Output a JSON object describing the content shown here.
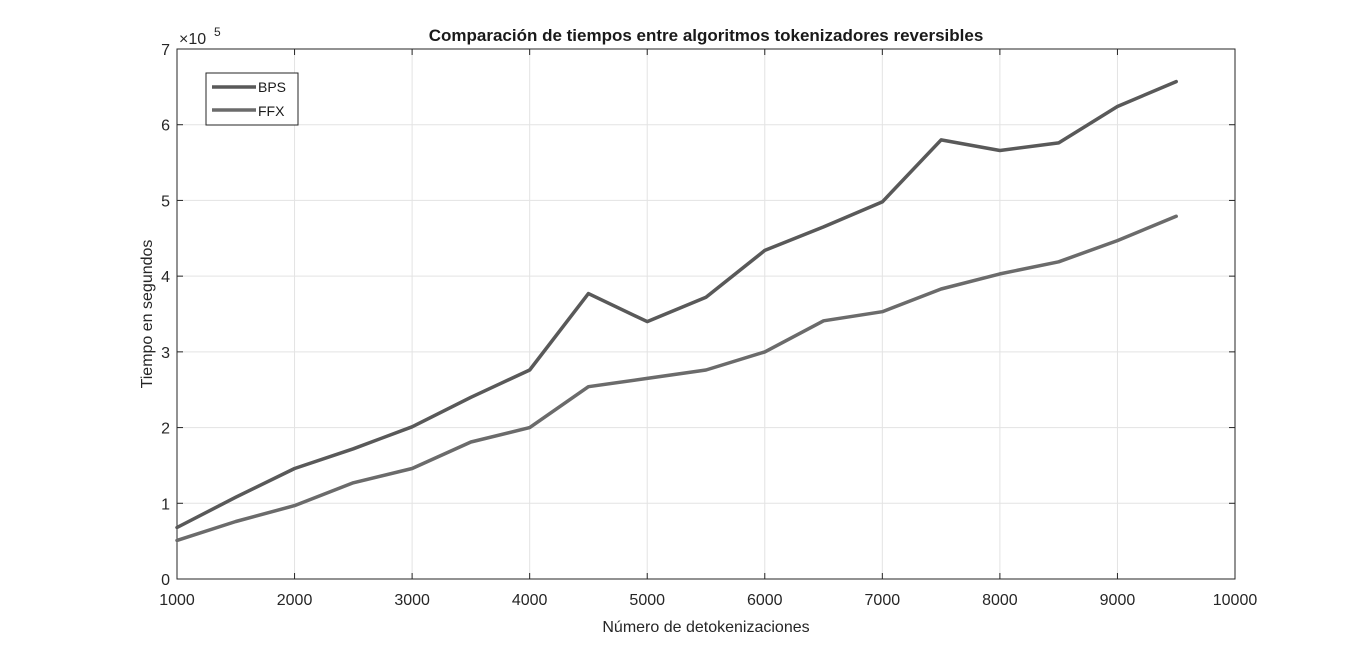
{
  "chart_data": {
    "type": "line",
    "title": "Comparación de tiempos entre algoritmos tokenizadores reversibles",
    "xlabel": "Número de detokenizaciones",
    "ylabel": "Tiempo en segundos",
    "y_exponent_label": "×10",
    "y_exponent_power": "5",
    "xlim": [
      1000,
      10000
    ],
    "ylim": [
      0,
      700000
    ],
    "xticks": [
      "1000",
      "2000",
      "3000",
      "4000",
      "5000",
      "6000",
      "7000",
      "8000",
      "9000",
      "10000"
    ],
    "yticks": [
      "0",
      "1",
      "2",
      "3",
      "4",
      "5",
      "6",
      "7"
    ],
    "grid": true,
    "legend_position": "top-left",
    "x": [
      1000,
      1500,
      2000,
      2500,
      3000,
      3500,
      4000,
      4500,
      5000,
      5500,
      6000,
      6500,
      7000,
      7500,
      8000,
      8500,
      9000,
      9500
    ],
    "series": [
      {
        "name": "BPS",
        "color": "#595959",
        "values": [
          68000,
          108000,
          146000,
          172000,
          201000,
          240000,
          276000,
          377000,
          340000,
          372000,
          434000,
          465000,
          498000,
          580000,
          566000,
          576000,
          624000,
          657000
        ]
      },
      {
        "name": "FFX",
        "color": "#6b6b6b",
        "values": [
          51000,
          76000,
          97000,
          127000,
          146000,
          181000,
          200000,
          254000,
          265000,
          276000,
          300000,
          341000,
          353000,
          383000,
          403000,
          419000,
          447000,
          479000
        ]
      }
    ]
  }
}
